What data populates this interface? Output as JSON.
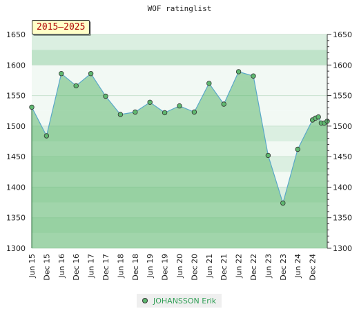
{
  "chart_data": {
    "type": "area",
    "title": "WOF ratinglist",
    "period_label": "2015–2025",
    "ylim": [
      1300,
      1650
    ],
    "yticks": [
      1300,
      1350,
      1400,
      1450,
      1500,
      1550,
      1600,
      1650
    ],
    "xticks": [
      "Jun 15",
      "Dec 15",
      "Jun 16",
      "Dec 16",
      "Jun 17",
      "Dec 17",
      "Jun 18",
      "Dec 18",
      "Jun 19",
      "Dec 19",
      "Jun 20",
      "Dec 20",
      "Jun 21",
      "Dec 21",
      "Jun 22",
      "Dec 22",
      "Jun 23",
      "Dec 23",
      "Jun 24",
      "Dec 24"
    ],
    "series": [
      {
        "name": "JOHANSSON Erik",
        "color": "#5fb870",
        "line_color": "#5aa8c8",
        "points": [
          {
            "x": 0.0,
            "y": 1531
          },
          {
            "x": 1.0,
            "y": 1484
          },
          {
            "x": 2.0,
            "y": 1586
          },
          {
            "x": 3.0,
            "y": 1566
          },
          {
            "x": 4.0,
            "y": 1586
          },
          {
            "x": 5.0,
            "y": 1549
          },
          {
            "x": 6.0,
            "y": 1519
          },
          {
            "x": 7.0,
            "y": 1523
          },
          {
            "x": 8.0,
            "y": 1539
          },
          {
            "x": 9.0,
            "y": 1522
          },
          {
            "x": 10.0,
            "y": 1533
          },
          {
            "x": 11.0,
            "y": 1523
          },
          {
            "x": 12.0,
            "y": 1570
          },
          {
            "x": 13.0,
            "y": 1536
          },
          {
            "x": 14.0,
            "y": 1589
          },
          {
            "x": 15.0,
            "y": 1582
          },
          {
            "x": 16.0,
            "y": 1452
          },
          {
            "x": 17.0,
            "y": 1374
          },
          {
            "x": 18.0,
            "y": 1462
          },
          {
            "x": 19.0,
            "y": 1510
          },
          {
            "x": 19.2,
            "y": 1513
          },
          {
            "x": 19.4,
            "y": 1515
          },
          {
            "x": 19.6,
            "y": 1505
          },
          {
            "x": 19.8,
            "y": 1505
          },
          {
            "x": 20.0,
            "y": 1508
          }
        ]
      }
    ]
  },
  "legend": [
    {
      "label": "JOHANSSON Erik"
    }
  ],
  "colors": {
    "band_light": "#f2f9f4",
    "band_mid": "#dbefe1",
    "band_dark": "#bfe3c9",
    "area_fill": "#5fb870"
  }
}
